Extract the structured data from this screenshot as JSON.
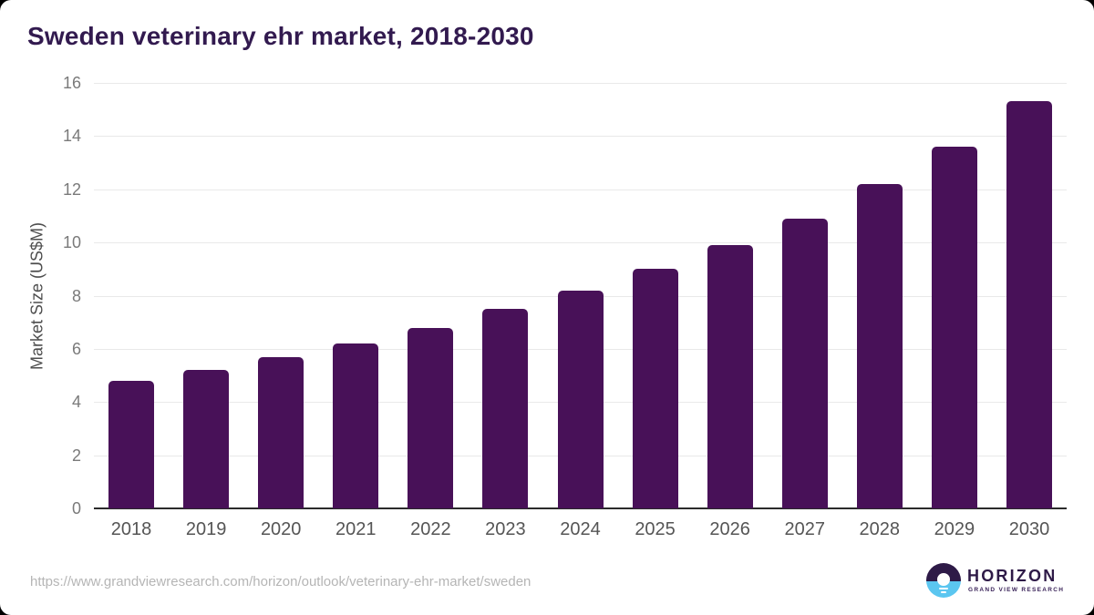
{
  "page": {
    "title": "Sweden veterinary ehr market, 2018-2030"
  },
  "chart_data": {
    "type": "bar",
    "title": "Sweden veterinary ehr market, 2018-2030",
    "categories": [
      "2018",
      "2019",
      "2020",
      "2021",
      "2022",
      "2023",
      "2024",
      "2025",
      "2026",
      "2027",
      "2028",
      "2029",
      "2030"
    ],
    "values": [
      4.8,
      5.2,
      5.7,
      6.2,
      6.8,
      7.5,
      8.2,
      9.0,
      9.9,
      10.9,
      12.2,
      13.6,
      15.3
    ],
    "xlabel": "",
    "ylabel": "Market Size (US$M)",
    "ylim": [
      0,
      16
    ],
    "yticks": [
      0,
      2,
      4,
      6,
      8,
      10,
      12,
      14,
      16
    ],
    "grid": "horizontal",
    "legend": "none",
    "bar_color": "#481158"
  },
  "footer": {
    "source_url": "https://www.grandviewresearch.com/horizon/outlook/veterinary-ehr-market/sweden",
    "logo": {
      "name": "HORIZON",
      "subtitle": "GRAND VIEW RESEARCH"
    }
  },
  "colors": {
    "bar": "#481158",
    "title": "#321a4f",
    "axis_line": "#2b2b2b",
    "gridline": "#e9e9e9",
    "y_tick_label": "#7a7a7a",
    "x_tick_label": "#555555",
    "url_text": "#b5b5b5",
    "logo_purple": "#2e1a47",
    "logo_blue": "#5bc6f0"
  }
}
